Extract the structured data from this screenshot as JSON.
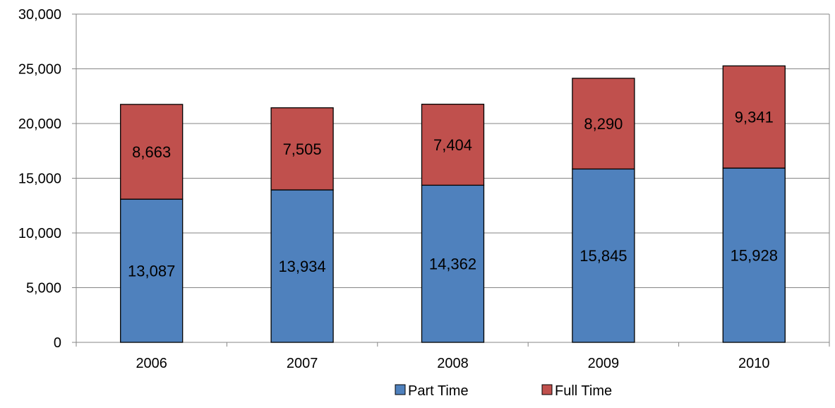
{
  "chart_data": {
    "type": "bar",
    "stacked": true,
    "categories": [
      "2006",
      "2007",
      "2008",
      "2009",
      "2010"
    ],
    "series": [
      {
        "name": "Part Time",
        "values": [
          13087,
          13934,
          14362,
          15845,
          15928
        ],
        "color": "#4F81BD"
      },
      {
        "name": "Full Time",
        "values": [
          8663,
          7505,
          7404,
          8290,
          9341
        ],
        "color": "#C0504D"
      }
    ],
    "data_labels": {
      "Part Time": [
        "13,087",
        "13,934",
        "14,362",
        "15,845",
        "15,928"
      ],
      "Full Time": [
        "8,663",
        "7,505",
        "7,404",
        "8,290",
        "9,341"
      ]
    },
    "y_ticks": [
      "0",
      "5,000",
      "10,000",
      "15,000",
      "20,000",
      "25,000",
      "30,000"
    ],
    "y_tick_values": [
      0,
      5000,
      10000,
      15000,
      20000,
      25000,
      30000
    ],
    "ylim": [
      0,
      30000
    ],
    "grid": true,
    "legend_position": "bottom",
    "title": "",
    "xlabel": "",
    "ylabel": ""
  }
}
